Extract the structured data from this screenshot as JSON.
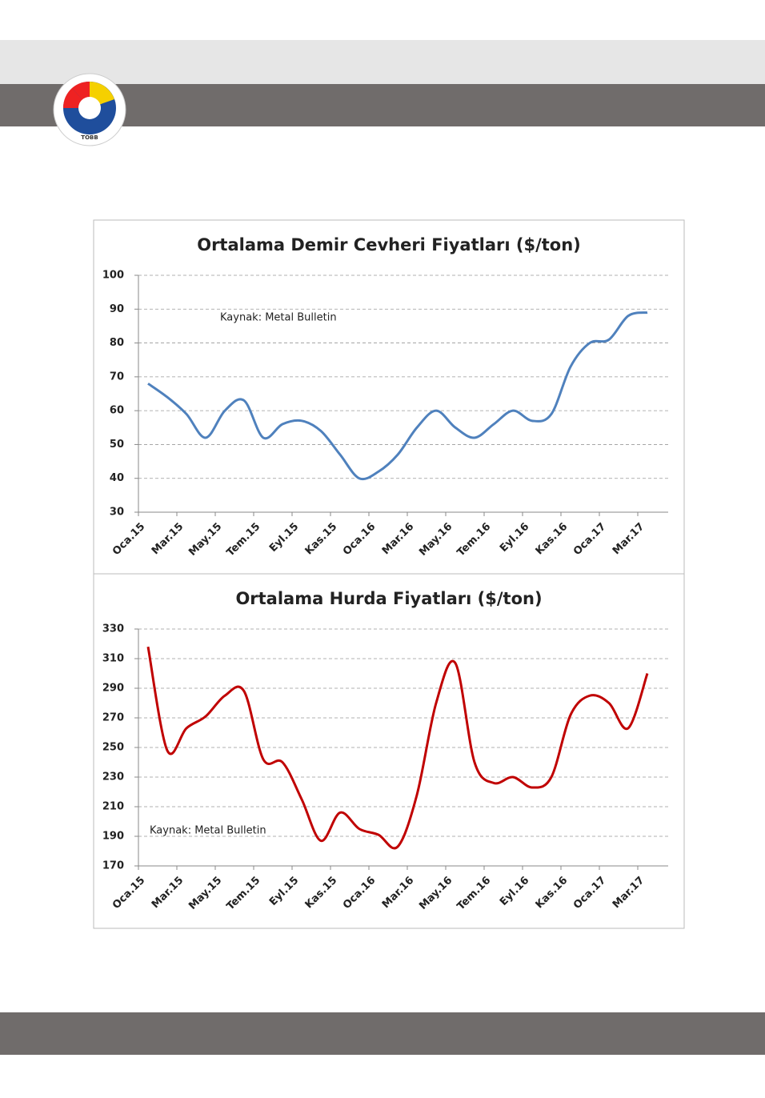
{
  "header": {
    "logo_text": "TOBB"
  },
  "chart_data": [
    {
      "type": "line",
      "title": "Ortalama Demir Cevheri Fiyatları ($/ton)",
      "annotation": "Kaynak: Metal Bulletin",
      "categories": [
        "Oca.15",
        null,
        "Mar.15",
        null,
        "May.15",
        null,
        "Tem.15",
        null,
        "Eyl.15",
        null,
        "Kas.15",
        null,
        "Oca.16",
        null,
        "Mar.16",
        null,
        "May.16",
        null,
        "Tem.16",
        null,
        "Eyl.16",
        null,
        "Kas.16",
        null,
        "Oca.17",
        null,
        "Mar.17"
      ],
      "series": [
        {
          "name": "Demir Cevheri",
          "color": "#4f81bd",
          "values": [
            68,
            64,
            59,
            52,
            60,
            63,
            52,
            56,
            57,
            54,
            47,
            40,
            42,
            47,
            55,
            60,
            55,
            52,
            56,
            60,
            57,
            59,
            73,
            80,
            81,
            88,
            89
          ]
        }
      ],
      "ylim": [
        30,
        100
      ],
      "yticks": [
        30,
        40,
        50,
        60,
        70,
        80,
        90,
        100
      ],
      "grid": true
    },
    {
      "type": "line",
      "title": "Ortalama Hurda Fiyatları ($/ton)",
      "annotation": "Kaynak: Metal Bulletin",
      "categories": [
        "Oca.15",
        null,
        "Mar.15",
        null,
        "May.15",
        null,
        "Tem.15",
        null,
        "Eyl.15",
        null,
        "Kas.15",
        null,
        "Oca.16",
        null,
        "Mar.16",
        null,
        "May.16",
        null,
        "Tem.16",
        null,
        "Eyl.16",
        null,
        "Kas.16",
        null,
        "Oca.17",
        null,
        "Mar.17"
      ],
      "series": [
        {
          "name": "Hurda",
          "color": "#c00000",
          "values": [
            318,
            248,
            263,
            271,
            285,
            288,
            242,
            240,
            215,
            187,
            206,
            195,
            191,
            183,
            218,
            280,
            307,
            240,
            226,
            230,
            223,
            230,
            272,
            285,
            280,
            263,
            300
          ]
        }
      ],
      "ylim": [
        170,
        330
      ],
      "yticks": [
        170,
        190,
        210,
        230,
        250,
        270,
        290,
        310,
        330
      ],
      "grid": true
    }
  ]
}
